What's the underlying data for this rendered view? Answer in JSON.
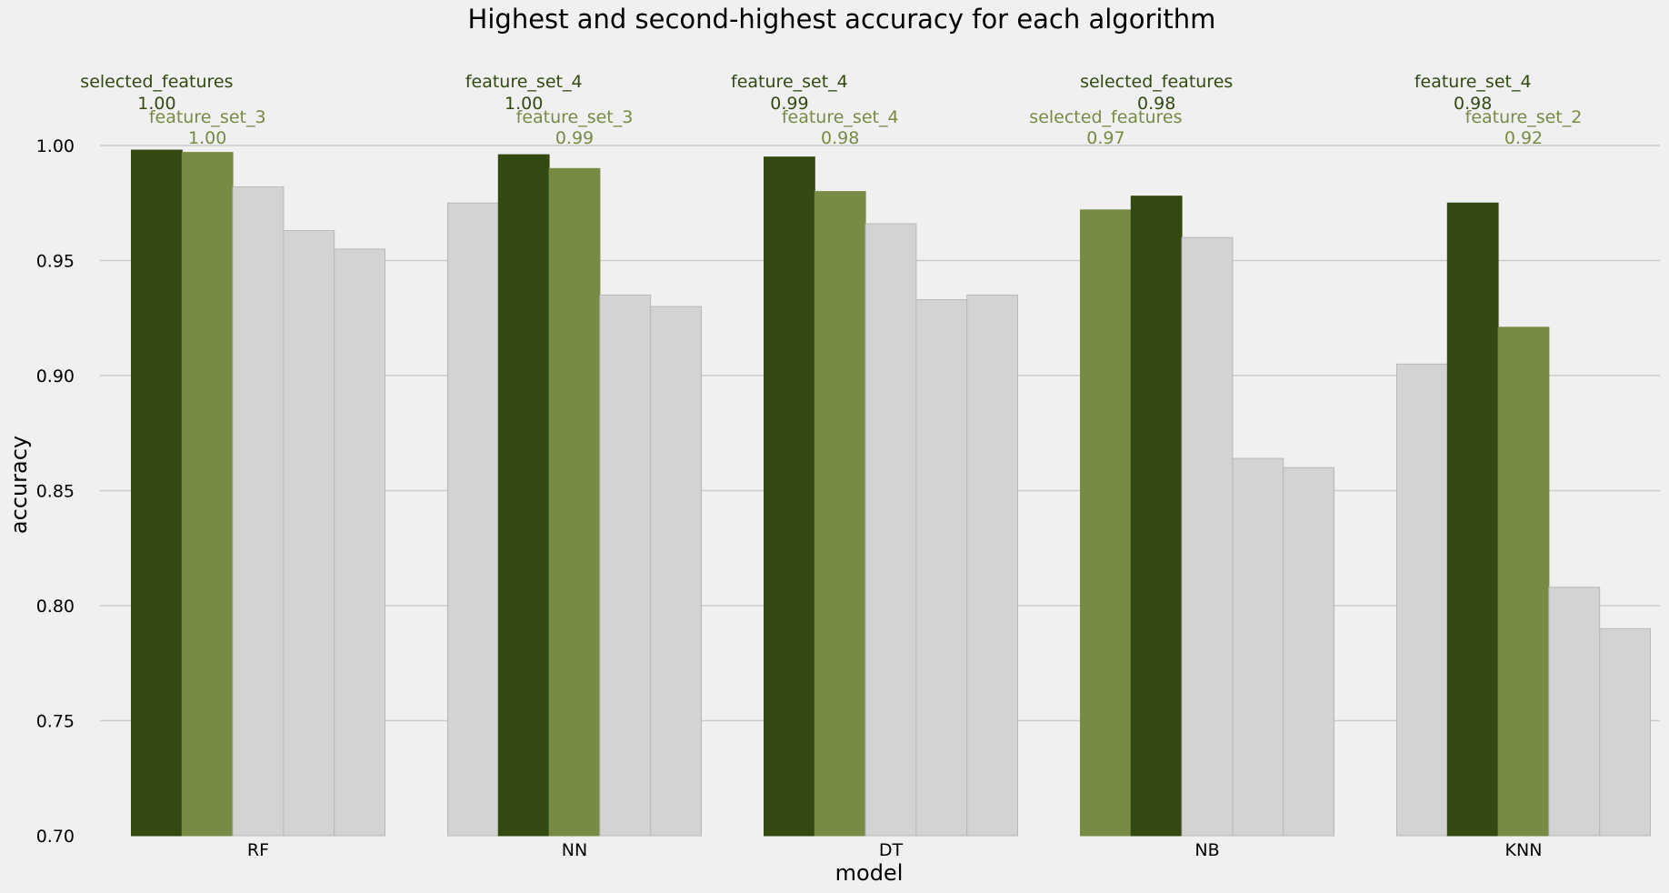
{
  "chart_data": {
    "type": "bar",
    "title": "Highest and second-highest accuracy for each algorithm",
    "xlabel": "model",
    "ylabel": "accuracy",
    "ylim": [
      0.7,
      1.0
    ],
    "yticks": [
      "0.70",
      "0.75",
      "0.80",
      "0.85",
      "0.90",
      "0.95",
      "1.00"
    ],
    "grid": "horizontal",
    "colors": {
      "highest": "#324a12",
      "second": "#778b45",
      "other": "#d3d3d3",
      "background": "#f0f0f0",
      "grid": "#cbcbcb"
    },
    "categories": [
      "RF",
      "NN",
      "DT",
      "NB",
      "KNN"
    ],
    "values": [
      [
        0.998,
        0.997,
        0.982,
        0.963,
        0.955
      ],
      [
        0.975,
        0.996,
        0.99,
        0.935,
        0.93
      ],
      [
        0.995,
        0.98,
        0.966,
        0.933,
        0.935
      ],
      [
        0.972,
        0.978,
        0.96,
        0.864,
        0.86
      ],
      [
        0.905,
        0.975,
        0.921,
        0.808,
        0.79
      ]
    ],
    "highest_index": [
      0,
      1,
      0,
      1,
      1
    ],
    "second_index": [
      1,
      2,
      1,
      0,
      2
    ],
    "annotations": [
      {
        "highest_name": "selected_features",
        "highest_value": "1.00",
        "second_name": "feature_set_3",
        "second_value": "1.00"
      },
      {
        "highest_name": "feature_set_4",
        "highest_value": "1.00",
        "second_name": "feature_set_3",
        "second_value": "0.99"
      },
      {
        "highest_name": "feature_set_4",
        "highest_value": "0.99",
        "second_name": "feature_set_4",
        "second_value": "0.98"
      },
      {
        "highest_name": "selected_features",
        "highest_value": "0.98",
        "second_name": "selected_features",
        "second_value": "0.97"
      },
      {
        "highest_name": "feature_set_4",
        "highest_value": "0.98",
        "second_name": "feature_set_2",
        "second_value": "0.92"
      }
    ]
  }
}
